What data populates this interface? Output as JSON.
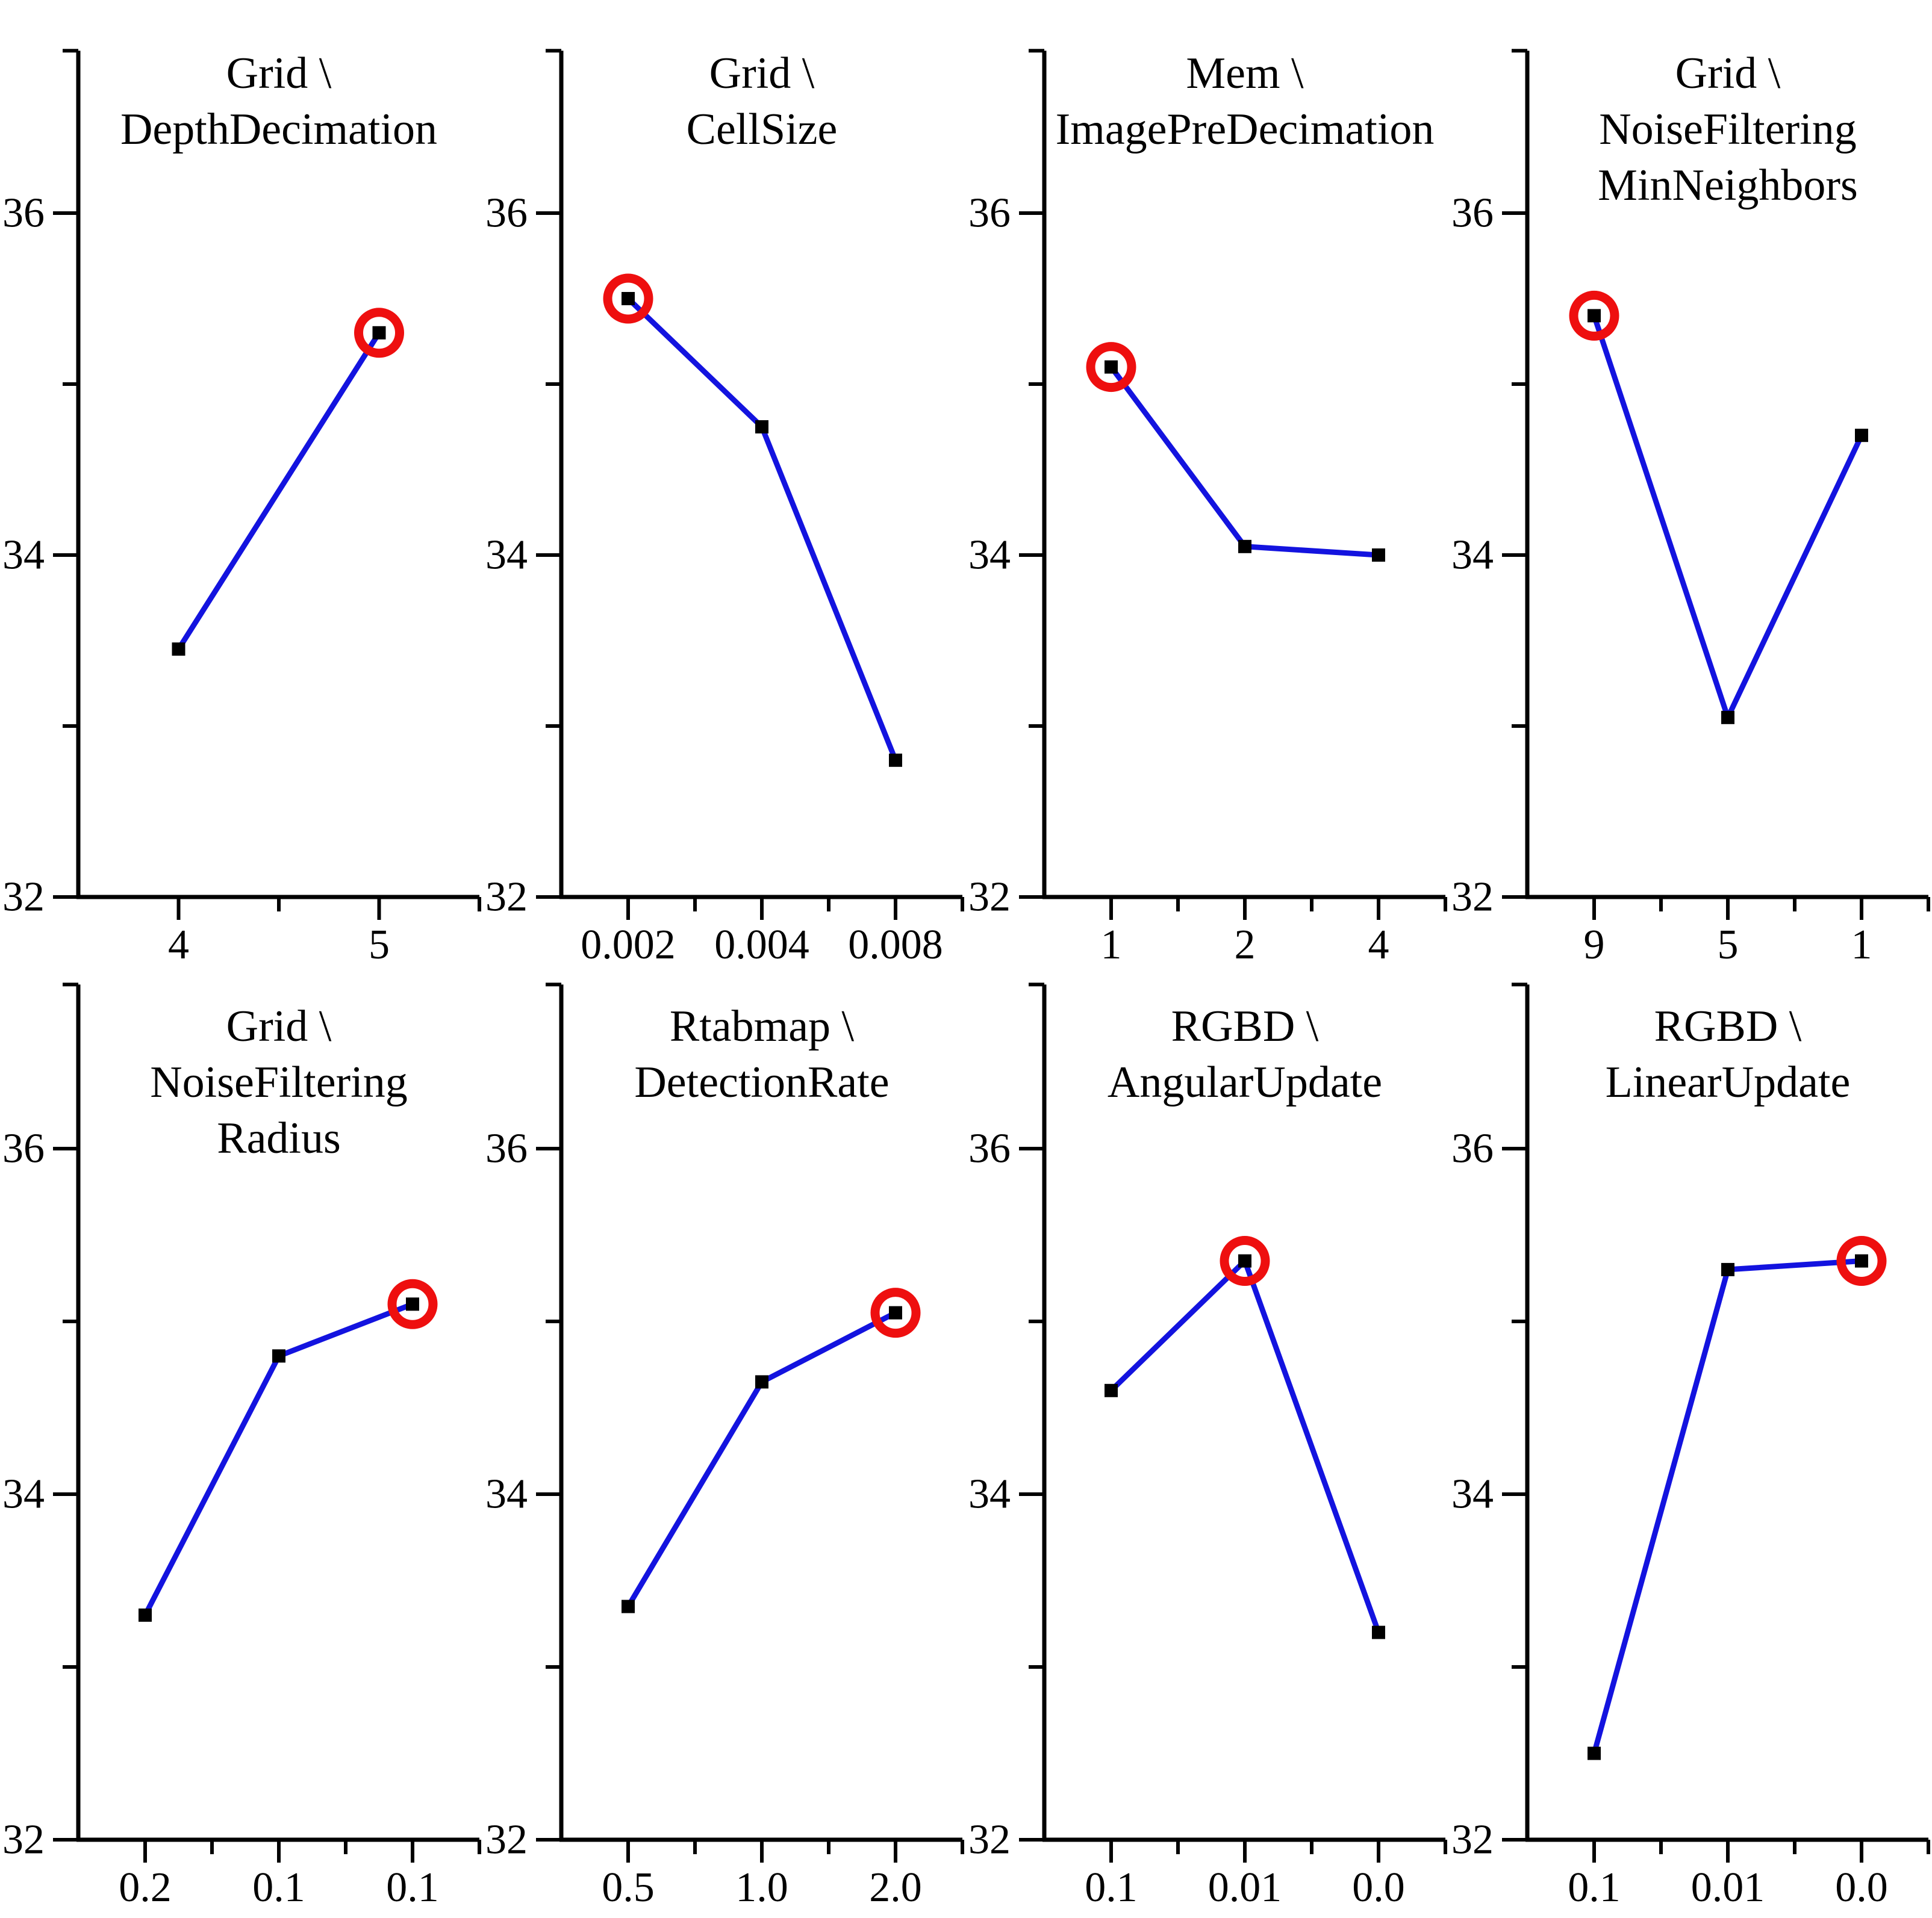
{
  "figure": {
    "description": "Parameter sweep line plots, 2 rows x 4 columns, each showing metric (32-36) vs parameter values; best value circled in red",
    "background": "#ffffff"
  },
  "colors": {
    "line": "#1313df",
    "marker": "#000000",
    "highlight_ring": "#ee0f0f",
    "axis": "#000000",
    "text": "#000000"
  },
  "chart_data": [
    {
      "type": "line",
      "title_lines": [
        "Grid \\",
        "DepthDecimation"
      ],
      "categories": [
        "4",
        "5"
      ],
      "values": [
        33.45,
        35.3
      ],
      "highlight_index": 1,
      "ylim": [
        32,
        36
      ],
      "y_tick_labels": [
        "32",
        "34",
        "36"
      ],
      "y_minor_ticks": [
        33,
        35
      ],
      "grid": false,
      "legend": "none"
    },
    {
      "type": "line",
      "title_lines": [
        "Grid \\",
        "CellSize"
      ],
      "categories": [
        "0.002",
        "0.004",
        "0.008"
      ],
      "values": [
        35.5,
        34.75,
        32.8
      ],
      "highlight_index": 0,
      "ylim": [
        32,
        36
      ],
      "y_tick_labels": [
        "32",
        "34",
        "36"
      ],
      "y_minor_ticks": [
        33,
        35
      ],
      "grid": false,
      "legend": "none"
    },
    {
      "type": "line",
      "title_lines": [
        "Mem \\",
        "ImagePreDecimation"
      ],
      "categories": [
        "1",
        "2",
        "4"
      ],
      "values": [
        35.1,
        34.05,
        34.0
      ],
      "highlight_index": 0,
      "ylim": [
        32,
        36
      ],
      "y_tick_labels": [
        "32",
        "34",
        "36"
      ],
      "y_minor_ticks": [
        33,
        35
      ],
      "grid": false,
      "legend": "none"
    },
    {
      "type": "line",
      "title_lines": [
        "Grid \\",
        "NoiseFiltering",
        "MinNeighbors"
      ],
      "categories": [
        "9",
        "5",
        "1"
      ],
      "values": [
        35.4,
        33.05,
        34.7
      ],
      "highlight_index": 0,
      "ylim": [
        32,
        36
      ],
      "y_tick_labels": [
        "32",
        "34",
        "36"
      ],
      "y_minor_ticks": [
        33,
        35
      ],
      "grid": false,
      "legend": "none"
    },
    {
      "type": "line",
      "title_lines": [
        "Grid \\",
        "NoiseFiltering",
        "Radius"
      ],
      "categories": [
        "0.2",
        "0.1",
        "0.1"
      ],
      "values": [
        33.3,
        34.8,
        35.1
      ],
      "highlight_index": 2,
      "ylim": [
        32,
        36
      ],
      "y_tick_labels": [
        "32",
        "34",
        "36"
      ],
      "y_minor_ticks": [
        33,
        35
      ],
      "grid": false,
      "legend": "none"
    },
    {
      "type": "line",
      "title_lines": [
        "Rtabmap \\",
        "DetectionRate"
      ],
      "categories": [
        "0.5",
        "1.0",
        "2.0"
      ],
      "values": [
        33.35,
        34.65,
        35.05
      ],
      "highlight_index": 2,
      "ylim": [
        32,
        36
      ],
      "y_tick_labels": [
        "32",
        "34",
        "36"
      ],
      "y_minor_ticks": [
        33,
        35
      ],
      "grid": false,
      "legend": "none"
    },
    {
      "type": "line",
      "title_lines": [
        "RGBD \\",
        "AngularUpdate"
      ],
      "categories": [
        "0.1",
        "0.01",
        "0.0"
      ],
      "values": [
        34.6,
        35.35,
        33.2
      ],
      "highlight_index": 1,
      "ylim": [
        32,
        36
      ],
      "y_tick_labels": [
        "32",
        "34",
        "36"
      ],
      "y_minor_ticks": [
        33,
        35
      ],
      "grid": false,
      "legend": "none"
    },
    {
      "type": "line",
      "title_lines": [
        "RGBD \\",
        "LinearUpdate"
      ],
      "categories": [
        "0.1",
        "0.01",
        "0.0"
      ],
      "values": [
        32.5,
        35.3,
        35.35
      ],
      "highlight_index": 2,
      "ylim": [
        32,
        36
      ],
      "y_tick_labels": [
        "32",
        "34",
        "36"
      ],
      "y_minor_ticks": [
        33,
        35
      ],
      "grid": false,
      "legend": "none"
    }
  ]
}
